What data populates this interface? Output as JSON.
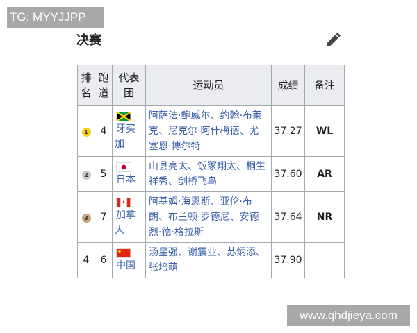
{
  "watermark_top": "TG: MYYJJPP",
  "watermark_bottom": "www.qhdjieya.com",
  "section_title": "决赛",
  "headers": {
    "rank": "排名",
    "lane": "跑道",
    "team": "代表团",
    "athletes": "运动员",
    "time": "成绩",
    "note": "备注"
  },
  "rows": [
    {
      "rank": "1",
      "medal": "gold",
      "lane": "4",
      "team": "牙买加",
      "flag": "jamaica-flag",
      "athletes": "阿萨法·鲍威尔、约翰·布莱克、尼克尔·阿什梅德、尤塞恩·博尔特",
      "time": "37.27",
      "note": "WL"
    },
    {
      "rank": "2",
      "medal": "silver",
      "lane": "5",
      "team": "日本",
      "flag": "japan-flag",
      "athletes": "山县亮太、饭冢翔太、桐生祥秀、剑桥飞鸟",
      "time": "37.60",
      "note": "AR"
    },
    {
      "rank": "3",
      "medal": "bronze",
      "lane": "7",
      "team": "加拿大",
      "flag": "canada-flag",
      "athletes": "阿基姆·海恩斯、亚伦·布朗、布兰顿·罗德尼、安德烈·德·格拉斯",
      "time": "37.64",
      "note": "NR"
    },
    {
      "rank": "4",
      "medal": "",
      "lane": "6",
      "team": "中国",
      "flag": "china-flag",
      "athletes": "汤星强、谢震业、苏炳添、张培萌",
      "time": "37.90",
      "note": ""
    }
  ],
  "colors": {
    "gold": "#f3d321",
    "silver": "#c8c8c8",
    "bronze": "#c8a27a",
    "link": "#3a5fa8"
  }
}
